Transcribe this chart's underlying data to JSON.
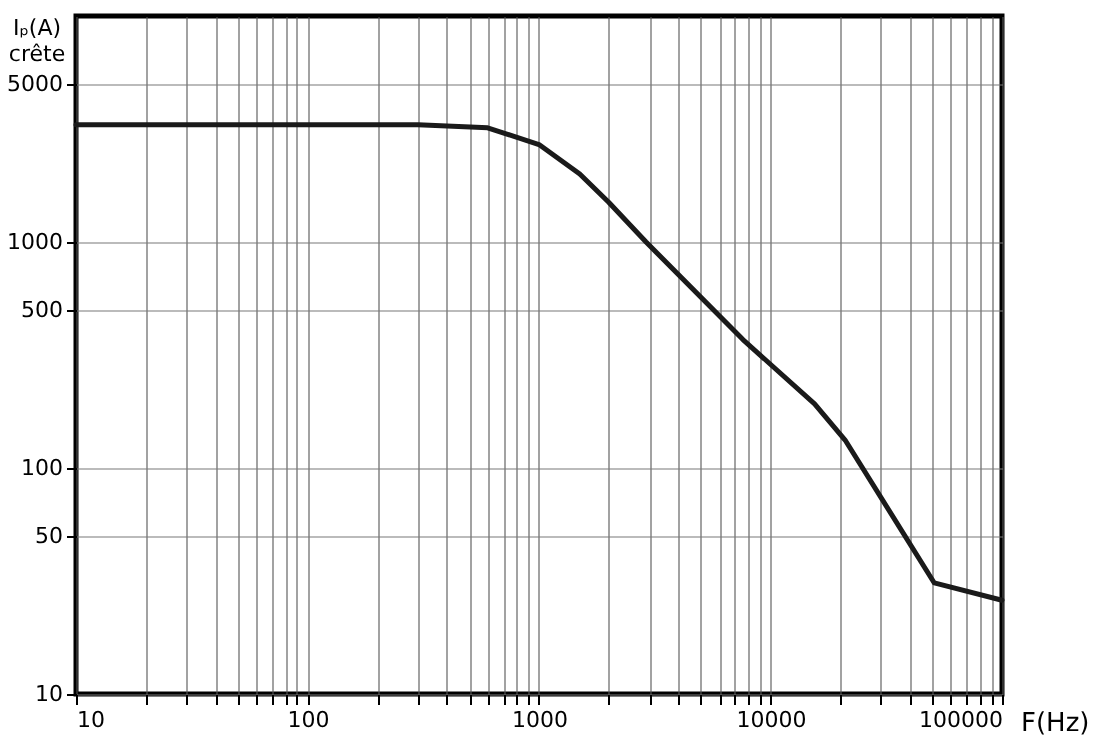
{
  "chart_data": {
    "type": "line",
    "xlabel": "F(Hz)",
    "ylabel": "Iₚ(A)\ncrête",
    "log": "xy",
    "grid": true,
    "marker": "none",
    "line_style": "solid",
    "xlim": [
      10,
      100000
    ],
    "ylim": [
      10,
      10000
    ],
    "xticks": [
      10,
      {
        "value": 20,
        "label": null
      },
      {
        "value": 30,
        "label": null
      },
      {
        "value": 40,
        "label": null
      },
      {
        "value": 50,
        "label": null
      },
      {
        "value": 60,
        "label": null
      },
      {
        "value": 70,
        "label": null
      },
      {
        "value": 80,
        "label": null
      },
      {
        "value": 90,
        "label": null
      },
      100,
      {
        "value": 200,
        "label": null
      },
      {
        "value": 300,
        "label": null
      },
      {
        "value": 400,
        "label": null
      },
      {
        "value": 500,
        "label": null
      },
      {
        "value": 600,
        "label": null
      },
      {
        "value": 700,
        "label": null
      },
      {
        "value": 800,
        "label": null
      },
      {
        "value": 900,
        "label": null
      },
      1000,
      {
        "value": 2000,
        "label": null
      },
      {
        "value": 3000,
        "label": null
      },
      {
        "value": 4000,
        "label": null
      },
      {
        "value": 5000,
        "label": null
      },
      {
        "value": 6000,
        "label": null
      },
      {
        "value": 7000,
        "label": null
      },
      {
        "value": 8000,
        "label": null
      },
      {
        "value": 9000,
        "label": null
      },
      10000,
      {
        "value": 20000,
        "label": null
      },
      {
        "value": 30000,
        "label": null
      },
      {
        "value": 40000,
        "label": null
      },
      {
        "value": 50000,
        "label": null
      },
      {
        "value": 60000,
        "label": null
      },
      {
        "value": 70000,
        "label": null
      },
      {
        "value": 80000,
        "label": null
      },
      {
        "value": 90000,
        "label": null
      },
      100000
    ],
    "yticks": [
      10,
      50,
      100,
      500,
      1000,
      5000
    ],
    "x": [
      10,
      300,
      600,
      1000,
      1500,
      2000,
      2900,
      7600,
      15500,
      21000,
      51000,
      100000
    ],
    "series": [
      {
        "color": "#1a1a1a",
        "values": [
          3300,
          3300,
          3200,
          2700,
          2000,
          1500,
          1000,
          370,
          192,
          133,
          31,
          26
        ]
      }
    ]
  }
}
